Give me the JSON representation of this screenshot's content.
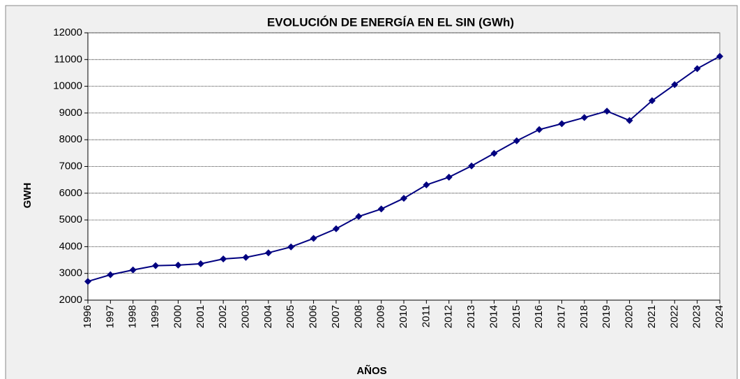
{
  "chart_data": {
    "type": "line",
    "title": "EVOLUCIÓN DE ENERGÍA EN EL SIN  (GWh)",
    "x_label": "AÑOS",
    "y_label": "GWH",
    "categories": [
      "1996",
      "1997",
      "1998",
      "1999",
      "2000",
      "2001",
      "2002",
      "2003",
      "2004",
      "2005",
      "2006",
      "2007",
      "2008",
      "2009",
      "2010",
      "2011",
      "2012",
      "2013",
      "2014",
      "2015",
      "2016",
      "2017",
      "2018",
      "2019",
      "2020",
      "2021",
      "2022",
      "2023",
      "2024"
    ],
    "series": [
      {
        "name": "GWH",
        "color": "#000080",
        "values": [
          2700,
          2950,
          3130,
          3290,
          3310,
          3360,
          3540,
          3600,
          3770,
          3990,
          4310,
          4670,
          5130,
          5410,
          5810,
          6310,
          6600,
          7020,
          7490,
          7960,
          8380,
          8600,
          8830,
          9070,
          8720,
          9460,
          10060,
          10660,
          11120
        ]
      }
    ],
    "ylim": [
      2000,
      12000
    ],
    "yticks": [
      2000,
      3000,
      4000,
      5000,
      6000,
      7000,
      8000,
      9000,
      10000,
      11000,
      12000
    ],
    "grid": true
  }
}
